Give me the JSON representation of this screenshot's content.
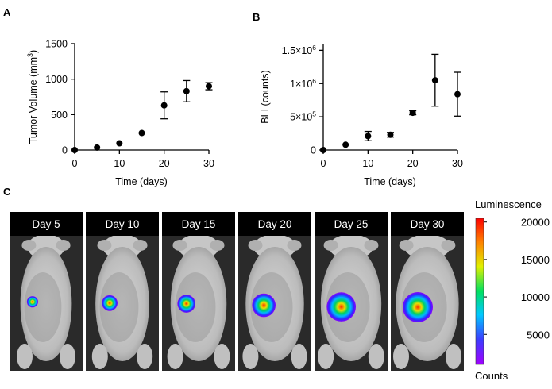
{
  "panels": {
    "a": "A",
    "b": "B",
    "c": "C"
  },
  "chart_data": [
    {
      "type": "scatter",
      "panel": "A",
      "title": "",
      "xlabel": "Time (days)",
      "ylabel_main": "Tumor Volume (mm",
      "ylabel_sup": "3",
      "ylabel_close": ")",
      "xlim": [
        0,
        30
      ],
      "ylim": [
        0,
        1500
      ],
      "xticks": [
        0,
        10,
        20,
        30
      ],
      "xtick_labels": [
        "0",
        "10",
        "20",
        "30"
      ],
      "yticks": [
        0,
        500,
        1000,
        1500
      ],
      "ytick_labels": [
        "0",
        "500",
        "1000",
        "1500"
      ],
      "x": [
        0,
        5,
        10,
        15,
        20,
        25,
        30
      ],
      "y": [
        0,
        35,
        95,
        240,
        630,
        830,
        900
      ],
      "err": [
        0,
        0,
        0,
        0,
        190,
        150,
        50
      ],
      "grid": false,
      "legend": "none"
    },
    {
      "type": "scatter",
      "panel": "B",
      "title": "",
      "xlabel": "Time (days)",
      "ylabel": "BLI (counts)",
      "xlim": [
        0,
        30
      ],
      "ylim": [
        0,
        1600000
      ],
      "xticks": [
        0,
        10,
        20,
        30
      ],
      "xtick_labels": [
        "0",
        "10",
        "20",
        "30"
      ],
      "yticks": [
        0,
        500000,
        1000000,
        1500000
      ],
      "ytick_labels": [
        {
          "main": "0",
          "sup": ""
        },
        {
          "main": "5×10",
          "sup": "5"
        },
        {
          "main": "1×10",
          "sup": "6"
        },
        {
          "main": "1.5×10",
          "sup": "6"
        }
      ],
      "x": [
        0,
        5,
        10,
        15,
        20,
        25,
        30
      ],
      "y": [
        0,
        80000,
        210000,
        230000,
        560000,
        1050000,
        840000
      ],
      "err": [
        0,
        0,
        70000,
        35000,
        30000,
        390000,
        330000
      ],
      "grid": false,
      "legend": "none"
    }
  ],
  "imaging": {
    "days": [
      "Day 5",
      "Day 10",
      "Day 15",
      "Day 20",
      "Day 25",
      "Day 30"
    ],
    "signal_size": [
      0.15,
      0.35,
      0.45,
      0.7,
      0.95,
      1.0
    ]
  },
  "colorbar": {
    "title": "Luminescence",
    "unit": "Counts",
    "ticks": [
      "20000",
      "15000",
      "10000",
      "5000"
    ],
    "tick_values": [
      20000,
      15000,
      10000,
      5000
    ],
    "min": 1000,
    "max": 20500,
    "colors": [
      "#a000ff",
      "#3c3cff",
      "#00c8ff",
      "#00e060",
      "#e0f000",
      "#ff8000",
      "#ff0000"
    ]
  }
}
